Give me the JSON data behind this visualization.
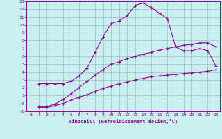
{
  "xlabel": "Windchill (Refroidissement éolien,°C)",
  "bg_color": "#c8f0ee",
  "line_color": "#990099",
  "grid_color": "#99aabb",
  "xlim": [
    -0.5,
    23.5
  ],
  "ylim": [
    -1,
    13
  ],
  "xticks": [
    0,
    1,
    2,
    3,
    4,
    5,
    6,
    7,
    8,
    9,
    10,
    11,
    12,
    13,
    14,
    15,
    16,
    17,
    18,
    19,
    20,
    21,
    22,
    23
  ],
  "yticks": [
    -1,
    0,
    1,
    2,
    3,
    4,
    5,
    6,
    7,
    8,
    9,
    10,
    11,
    12,
    13
  ],
  "line1_x": [
    1,
    2,
    3,
    4,
    5,
    6,
    7,
    8,
    9,
    10,
    11,
    12,
    13,
    14,
    15,
    16,
    17,
    18,
    19,
    20,
    21,
    22,
    23
  ],
  "line1_y": [
    2.5,
    2.5,
    2.5,
    2.5,
    2.8,
    3.5,
    4.5,
    6.5,
    8.5,
    10.2,
    10.5,
    11.2,
    12.5,
    12.8,
    12.2,
    11.5,
    10.8,
    7.2,
    6.7,
    6.7,
    7.0,
    6.7,
    4.8
  ],
  "line2_x": [
    1,
    2,
    3,
    4,
    5,
    6,
    7,
    8,
    9,
    10,
    11,
    12,
    13,
    14,
    15,
    16,
    17,
    18,
    19,
    20,
    21,
    22,
    23
  ],
  "line2_y": [
    -0.4,
    -0.4,
    -0.1,
    0.5,
    1.2,
    2.0,
    2.8,
    3.6,
    4.3,
    5.0,
    5.3,
    5.7,
    6.0,
    6.3,
    6.5,
    6.8,
    7.0,
    7.2,
    7.4,
    7.5,
    7.7,
    7.7,
    7.2
  ],
  "line3_x": [
    1,
    2,
    3,
    4,
    5,
    6,
    7,
    8,
    9,
    10,
    11,
    12,
    13,
    14,
    15,
    16,
    17,
    18,
    19,
    20,
    21,
    22,
    23
  ],
  "line3_y": [
    -0.5,
    -0.5,
    -0.3,
    0.0,
    0.4,
    0.8,
    1.1,
    1.5,
    1.9,
    2.2,
    2.5,
    2.7,
    3.0,
    3.2,
    3.4,
    3.5,
    3.6,
    3.7,
    3.8,
    3.9,
    4.0,
    4.1,
    4.3
  ]
}
